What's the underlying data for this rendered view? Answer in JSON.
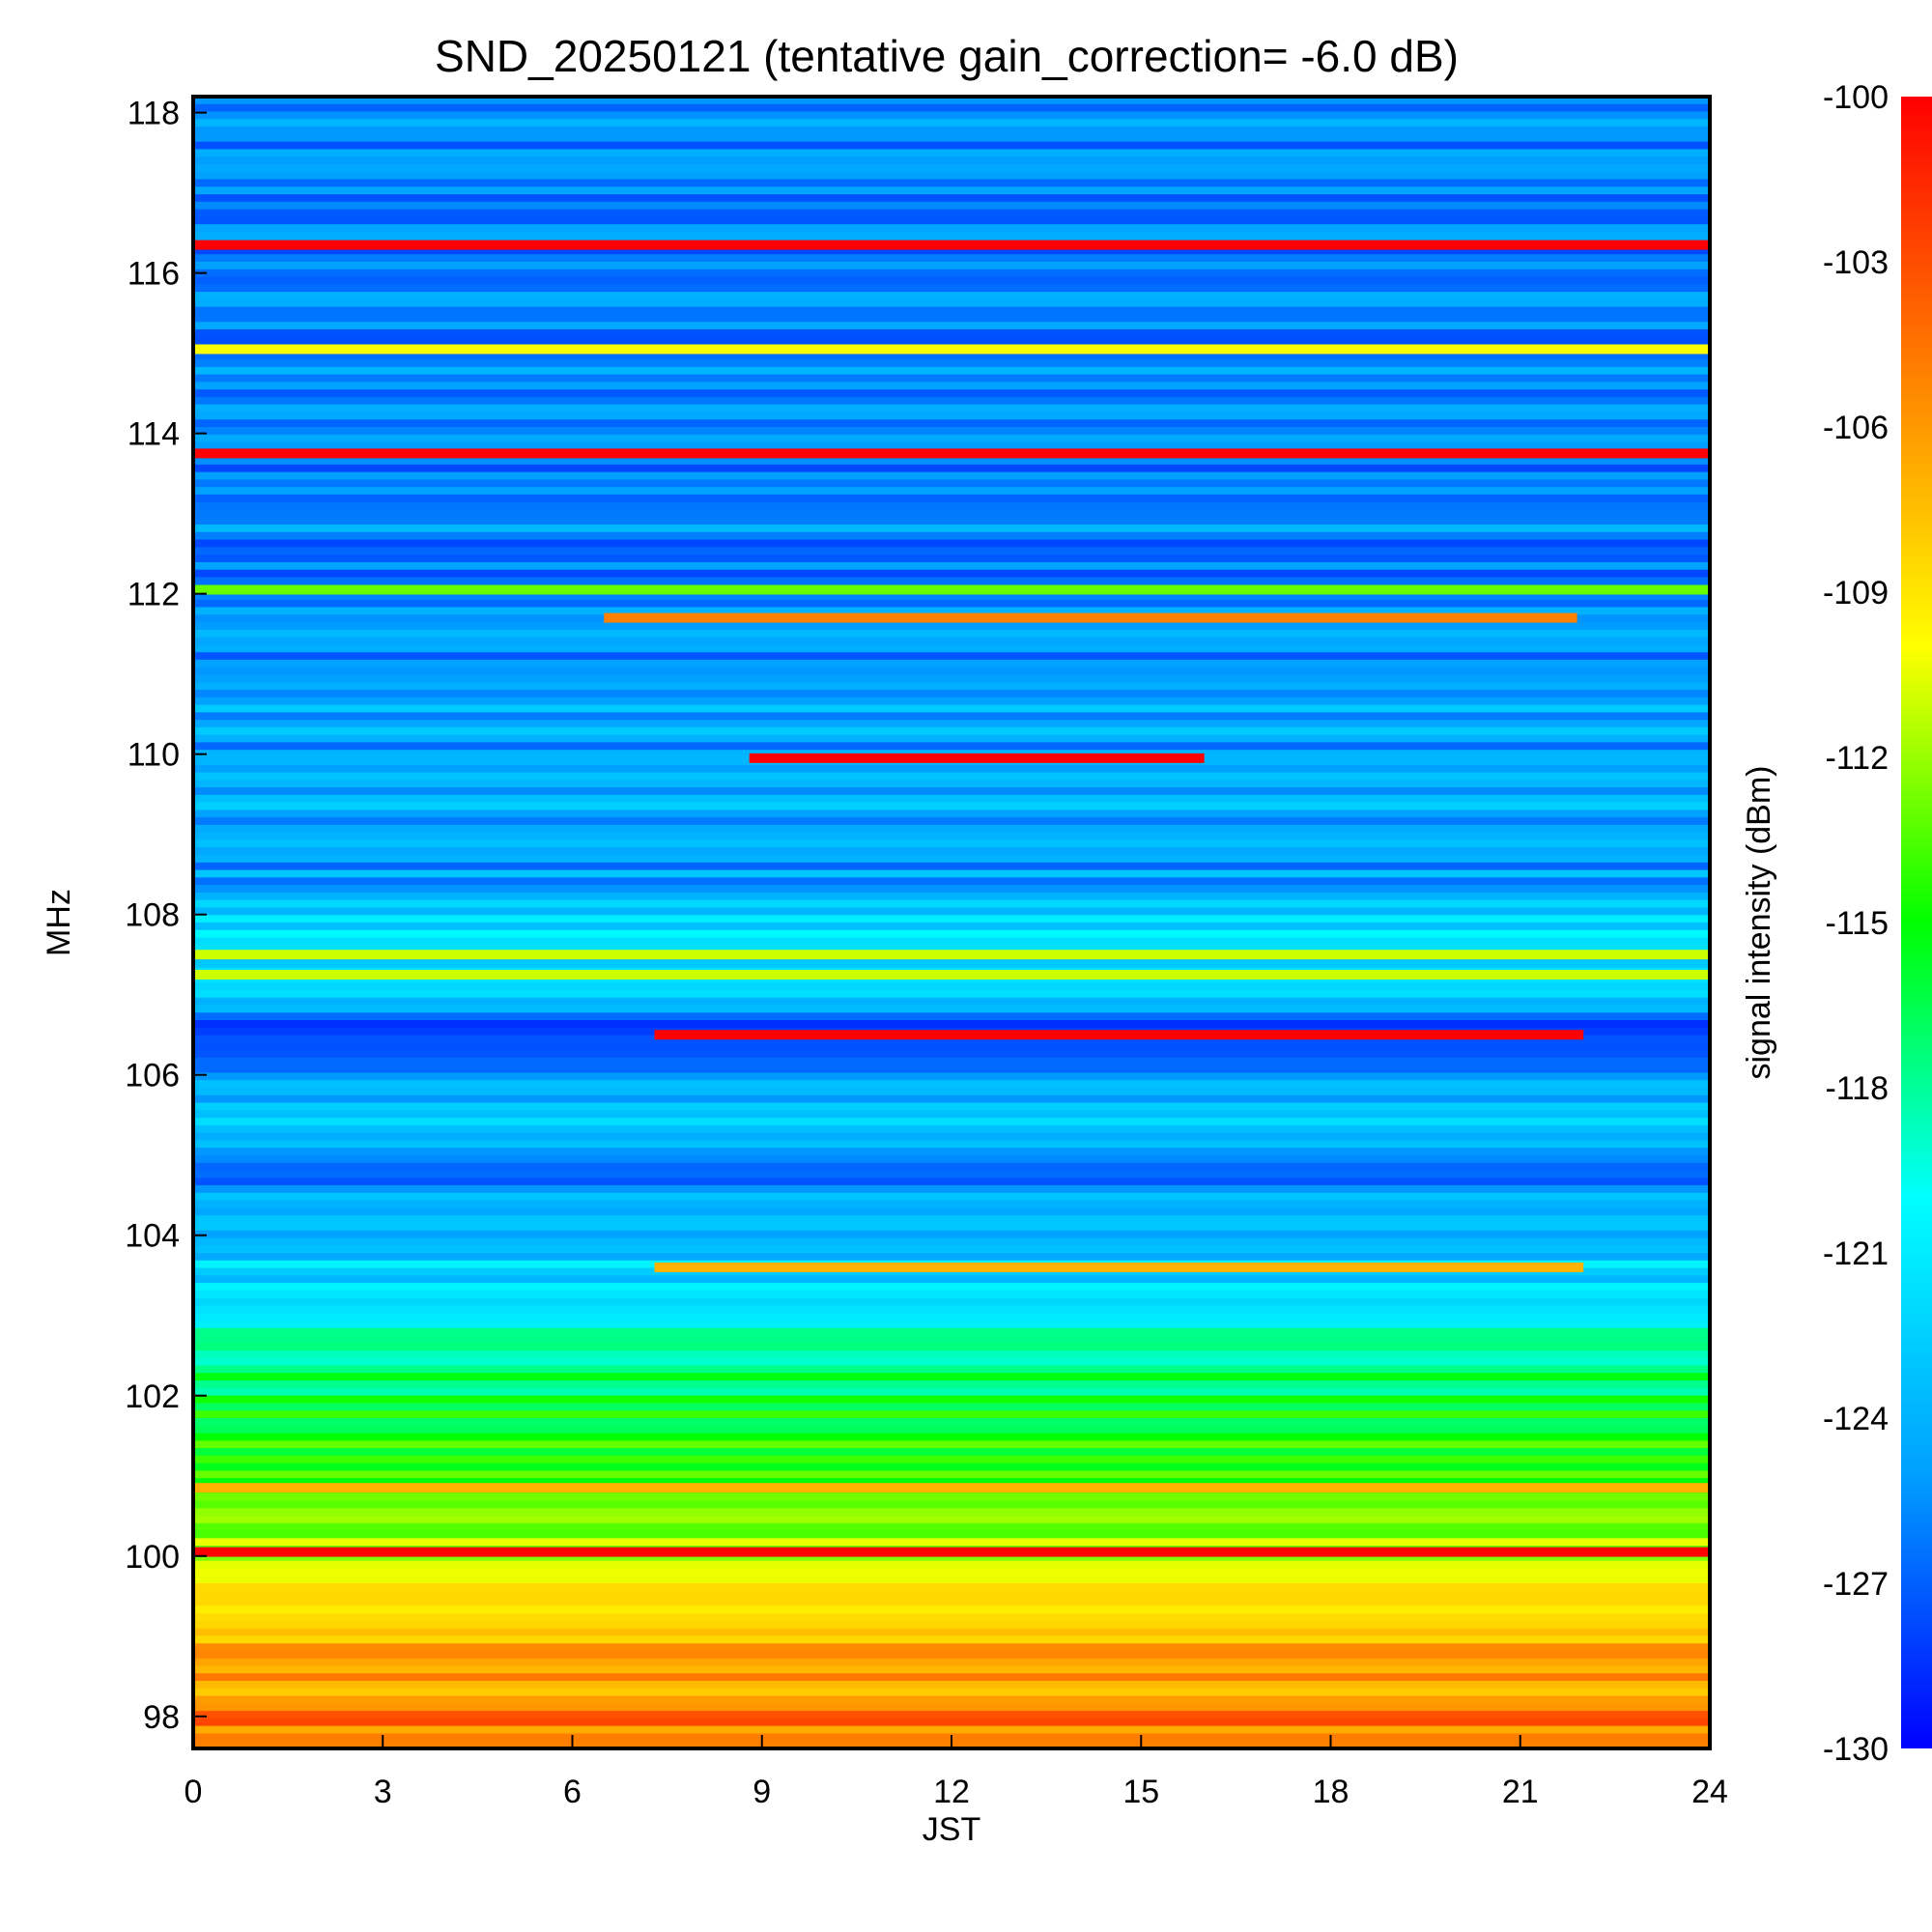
{
  "chart_data": {
    "type": "heatmap",
    "title": "SND_20250121 (tentative gain_correction= -6.0 dB)",
    "xlabel": "JST",
    "ylabel": "MHz",
    "colorbar_label": "signal intensity (dBm)",
    "xlim": [
      0,
      24
    ],
    "ylim": [
      97.6,
      118.2
    ],
    "x_ticks": [
      "0",
      "3",
      "6",
      "9",
      "12",
      "15",
      "18",
      "21",
      "24"
    ],
    "y_ticks": [
      "98",
      "100",
      "102",
      "104",
      "106",
      "108",
      "110",
      "112",
      "114",
      "116",
      "118"
    ],
    "colorbar_range": [
      -130,
      -100
    ],
    "colorbar_ticks": [
      "-100",
      "-103",
      "-106",
      "-109",
      "-112",
      "-115",
      "-118",
      "-121",
      "-124",
      "-127",
      "-130"
    ],
    "colormap": [
      "#0000ff",
      "#00a0ff",
      "#00ffff",
      "#00ff00",
      "#ffff00",
      "#ff8000",
      "#ff0000"
    ],
    "background_profile": [
      {
        "freq": 97.8,
        "dbm": -104.5
      },
      {
        "freq": 98.5,
        "dbm": -106.5
      },
      {
        "freq": 99.5,
        "dbm": -109
      },
      {
        "freq": 100.8,
        "dbm": -114
      },
      {
        "freq": 102.0,
        "dbm": -116.5
      },
      {
        "freq": 103.0,
        "dbm": -119.5
      },
      {
        "freq": 104.0,
        "dbm": -124
      },
      {
        "freq": 104.8,
        "dbm": -126
      },
      {
        "freq": 105.5,
        "dbm": -122
      },
      {
        "freq": 106.3,
        "dbm": -128.5
      },
      {
        "freq": 107.0,
        "dbm": -124
      },
      {
        "freq": 107.6,
        "dbm": -121
      },
      {
        "freq": 108.5,
        "dbm": -125
      },
      {
        "freq": 110.0,
        "dbm": -124.5
      },
      {
        "freq": 112.0,
        "dbm": -125.5
      },
      {
        "freq": 114.0,
        "dbm": -126
      },
      {
        "freq": 116.0,
        "dbm": -126
      },
      {
        "freq": 118.2,
        "dbm": -126
      }
    ],
    "lines": [
      {
        "freq": 116.35,
        "t_start": 0,
        "t_end": 24,
        "dbm": -100
      },
      {
        "freq": 115.05,
        "t_start": 0,
        "t_end": 24,
        "dbm": -110
      },
      {
        "freq": 113.75,
        "t_start": 0,
        "t_end": 24,
        "dbm": -100
      },
      {
        "freq": 112.05,
        "t_start": 0,
        "t_end": 24,
        "dbm": -113
      },
      {
        "freq": 111.7,
        "t_start": 6.5,
        "t_end": 21.9,
        "dbm": -105
      },
      {
        "freq": 109.95,
        "t_start": 8.8,
        "t_end": 16.0,
        "dbm": -100
      },
      {
        "freq": 107.5,
        "t_start": 0,
        "t_end": 24,
        "dbm": -111
      },
      {
        "freq": 107.25,
        "t_start": 0,
        "t_end": 24,
        "dbm": -111
      },
      {
        "freq": 106.5,
        "t_start": 7.3,
        "t_end": 22.0,
        "dbm": -100
      },
      {
        "freq": 103.6,
        "t_start": 7.3,
        "t_end": 22.0,
        "dbm": -107
      },
      {
        "freq": 100.85,
        "t_start": 0,
        "t_end": 24,
        "dbm": -107
      },
      {
        "freq": 100.05,
        "t_start": 0,
        "t_end": 24,
        "dbm": -100
      }
    ]
  }
}
